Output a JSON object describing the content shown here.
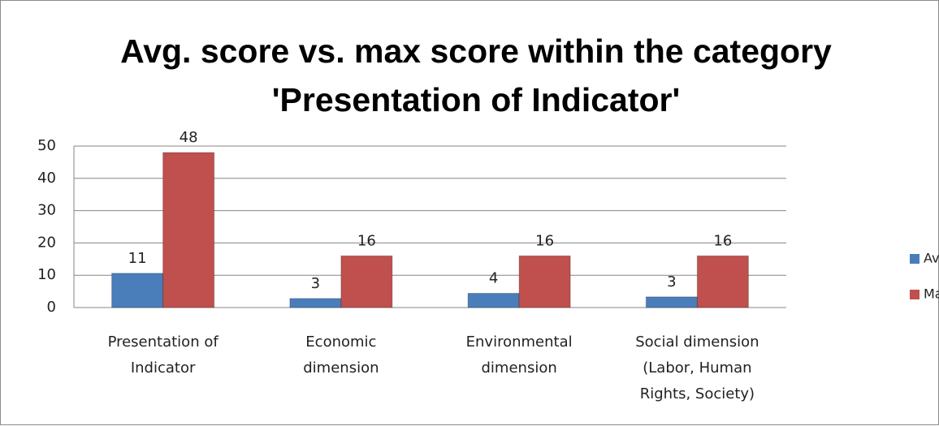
{
  "chart_data": {
    "type": "bar",
    "title": "Avg. score vs. max score within the category 'Presentation of Indicator'",
    "categories": [
      "Presentation of Indicator",
      "Economic dimension",
      "Environmental dimension",
      "Social dimension (Labor, Human Rights, Society)"
    ],
    "series": [
      {
        "name": "Avg. Score",
        "color": "#4a7ebb",
        "values": [
          10.6,
          2.8,
          4.4,
          3.3
        ],
        "value_labels": [
          "11",
          "3",
          "4",
          "3"
        ]
      },
      {
        "name": "Max. score",
        "color": "#c0504d",
        "values": [
          48,
          16,
          16,
          16
        ],
        "value_labels": [
          "48",
          "16",
          "16",
          "16"
        ]
      }
    ],
    "ylim": [
      0,
      50
    ],
    "yticks": [
      0,
      10,
      20,
      30,
      40,
      50
    ],
    "grid": true,
    "legend": "right"
  }
}
